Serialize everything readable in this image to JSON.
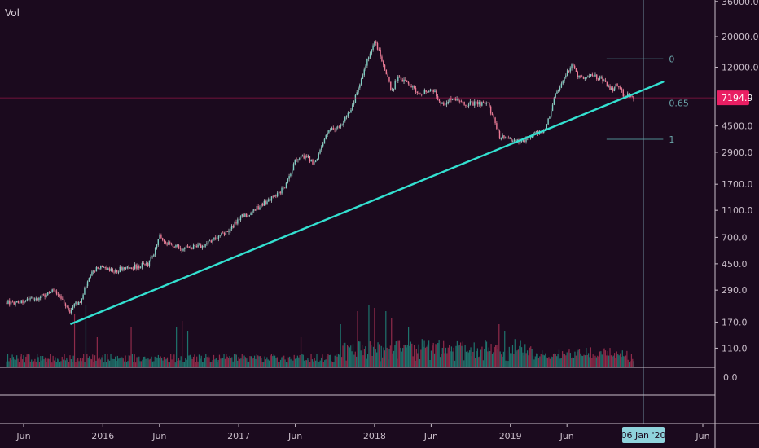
{
  "indicator_label": "Vol",
  "price_tag": {
    "label": "7194.9",
    "value": 7194.9,
    "color": "#e91e63"
  },
  "crosshair": {
    "date_label": "06 Jan '20",
    "date_index": 19.17
  },
  "indicator_pane": {
    "zero_label": "0.0"
  },
  "colors": {
    "background": "#1b0a1e",
    "up_candle": "#26a69a",
    "down_candle": "#ef5350",
    "trendline": "#33e0d0",
    "fib": "#4f8f93",
    "crosshair": "#6d8b99"
  },
  "chart_data": {
    "type": "candlestick",
    "scale": "log",
    "y_ticks": [
      36000,
      20000,
      12000,
      7194.9,
      4500,
      2900,
      1700,
      1100,
      700,
      450,
      290,
      170,
      110
    ],
    "y_tick_labels": [
      "36000.0",
      "20000.0",
      "12000.0",
      "7194.9",
      "4500.0",
      "2900.0",
      "1700.0",
      "1100.0",
      "700.0",
      "450.0",
      "290.0",
      "170.0",
      "110.0"
    ],
    "x_ticks": [
      {
        "label": "Jun",
        "month_index": 0
      },
      {
        "label": "2016",
        "month_index": 7
      },
      {
        "label": "Jun",
        "month_index": 12
      },
      {
        "label": "2017",
        "month_index": 19
      },
      {
        "label": "Jun",
        "month_index": 24
      },
      {
        "label": "2018",
        "month_index": 31
      },
      {
        "label": "Jun",
        "month_index": 36
      },
      {
        "label": "2019",
        "month_index": 43
      },
      {
        "label": "Jun",
        "month_index": 48
      },
      {
        "label": "Jun",
        "month_index": 60
      }
    ],
    "price_path": [
      {
        "t": -1.5,
        "p": 235
      },
      {
        "t": 0,
        "p": 240
      },
      {
        "t": 1,
        "p": 250
      },
      {
        "t": 2,
        "p": 270
      },
      {
        "t": 2.5,
        "p": 285
      },
      {
        "t": 3,
        "p": 270
      },
      {
        "t": 3.5,
        "p": 235
      },
      {
        "t": 4,
        "p": 200
      },
      {
        "t": 4.5,
        "p": 230
      },
      {
        "t": 5,
        "p": 235
      },
      {
        "t": 5.5,
        "p": 320
      },
      {
        "t": 6,
        "p": 400
      },
      {
        "t": 7,
        "p": 430
      },
      {
        "t": 8,
        "p": 400
      },
      {
        "t": 9,
        "p": 420
      },
      {
        "t": 10,
        "p": 430
      },
      {
        "t": 11,
        "p": 450
      },
      {
        "t": 11.5,
        "p": 530
      },
      {
        "t": 12,
        "p": 700
      },
      {
        "t": 12.5,
        "p": 650
      },
      {
        "t": 13,
        "p": 620
      },
      {
        "t": 14,
        "p": 580
      },
      {
        "t": 15,
        "p": 600
      },
      {
        "t": 16,
        "p": 620
      },
      {
        "t": 17,
        "p": 700
      },
      {
        "t": 18,
        "p": 760
      },
      {
        "t": 19,
        "p": 960
      },
      {
        "t": 20,
        "p": 1050
      },
      {
        "t": 21,
        "p": 1200
      },
      {
        "t": 22,
        "p": 1350
      },
      {
        "t": 23,
        "p": 1600
      },
      {
        "t": 24,
        "p": 2500
      },
      {
        "t": 25,
        "p": 2800
      },
      {
        "t": 25.5,
        "p": 2400
      },
      {
        "t": 26,
        "p": 2750
      },
      {
        "t": 27,
        "p": 4200
      },
      {
        "t": 28,
        "p": 4500
      },
      {
        "t": 29,
        "p": 6200
      },
      {
        "t": 30,
        "p": 11000
      },
      {
        "t": 31,
        "p": 19000
      },
      {
        "t": 31.5,
        "p": 15000
      },
      {
        "t": 32,
        "p": 11000
      },
      {
        "t": 32.5,
        "p": 8000
      },
      {
        "t": 33,
        "p": 10000
      },
      {
        "t": 34,
        "p": 9000
      },
      {
        "t": 35,
        "p": 7500
      },
      {
        "t": 36,
        "p": 8500
      },
      {
        "t": 37,
        "p": 6500
      },
      {
        "t": 38,
        "p": 7200
      },
      {
        "t": 39,
        "p": 6500
      },
      {
        "t": 40,
        "p": 6600
      },
      {
        "t": 41,
        "p": 6400
      },
      {
        "t": 41.5,
        "p": 5200
      },
      {
        "t": 42,
        "p": 3800
      },
      {
        "t": 43,
        "p": 3600
      },
      {
        "t": 44,
        "p": 3500
      },
      {
        "t": 45,
        "p": 3900
      },
      {
        "t": 46,
        "p": 4100
      },
      {
        "t": 46.5,
        "p": 5500
      },
      {
        "t": 47,
        "p": 8000
      },
      {
        "t": 47.5,
        "p": 9000
      },
      {
        "t": 48,
        "p": 11000
      },
      {
        "t": 48.5,
        "p": 12800
      },
      {
        "t": 49,
        "p": 10000
      },
      {
        "t": 50,
        "p": 10500
      },
      {
        "t": 51,
        "p": 10000
      },
      {
        "t": 52,
        "p": 8200
      },
      {
        "t": 52.5,
        "p": 9200
      },
      {
        "t": 53,
        "p": 7300
      },
      {
        "t": 53.5,
        "p": 7700
      },
      {
        "t": 54,
        "p": 7194.9
      }
    ],
    "volume_spikes": [
      {
        "t": 4.5,
        "v": 0.8,
        "up": false
      },
      {
        "t": 5.5,
        "v": 0.95,
        "up": true
      },
      {
        "t": 6.5,
        "v": 0.45,
        "up": false
      },
      {
        "t": 9.5,
        "v": 0.6,
        "up": false
      },
      {
        "t": 13.5,
        "v": 0.6,
        "up": true
      },
      {
        "t": 14,
        "v": 0.7,
        "up": false
      },
      {
        "t": 14.5,
        "v": 0.55,
        "up": true
      },
      {
        "t": 24.5,
        "v": 0.45,
        "up": false
      },
      {
        "t": 28,
        "v": 0.65,
        "up": true
      },
      {
        "t": 29.5,
        "v": 0.85,
        "up": false
      },
      {
        "t": 30.5,
        "v": 0.95,
        "up": true
      },
      {
        "t": 31,
        "v": 0.9,
        "up": false
      },
      {
        "t": 32,
        "v": 0.85,
        "up": true
      },
      {
        "t": 32.5,
        "v": 0.75,
        "up": false
      },
      {
        "t": 34,
        "v": 0.6,
        "up": true
      },
      {
        "t": 42,
        "v": 0.65,
        "up": false
      },
      {
        "t": 42.5,
        "v": 0.55,
        "up": true
      }
    ],
    "trendline": [
      {
        "t": 4.2,
        "p": 165
      },
      {
        "t": 56.5,
        "p": 9400
      }
    ],
    "fib_levels": [
      {
        "label": "0",
        "p": 13800
      },
      {
        "label": "0.65",
        "p": 6600
      },
      {
        "label": "1",
        "p": 3600
      }
    ],
    "fib_range": {
      "t_start": 51.5,
      "t_end": 56.5
    }
  }
}
